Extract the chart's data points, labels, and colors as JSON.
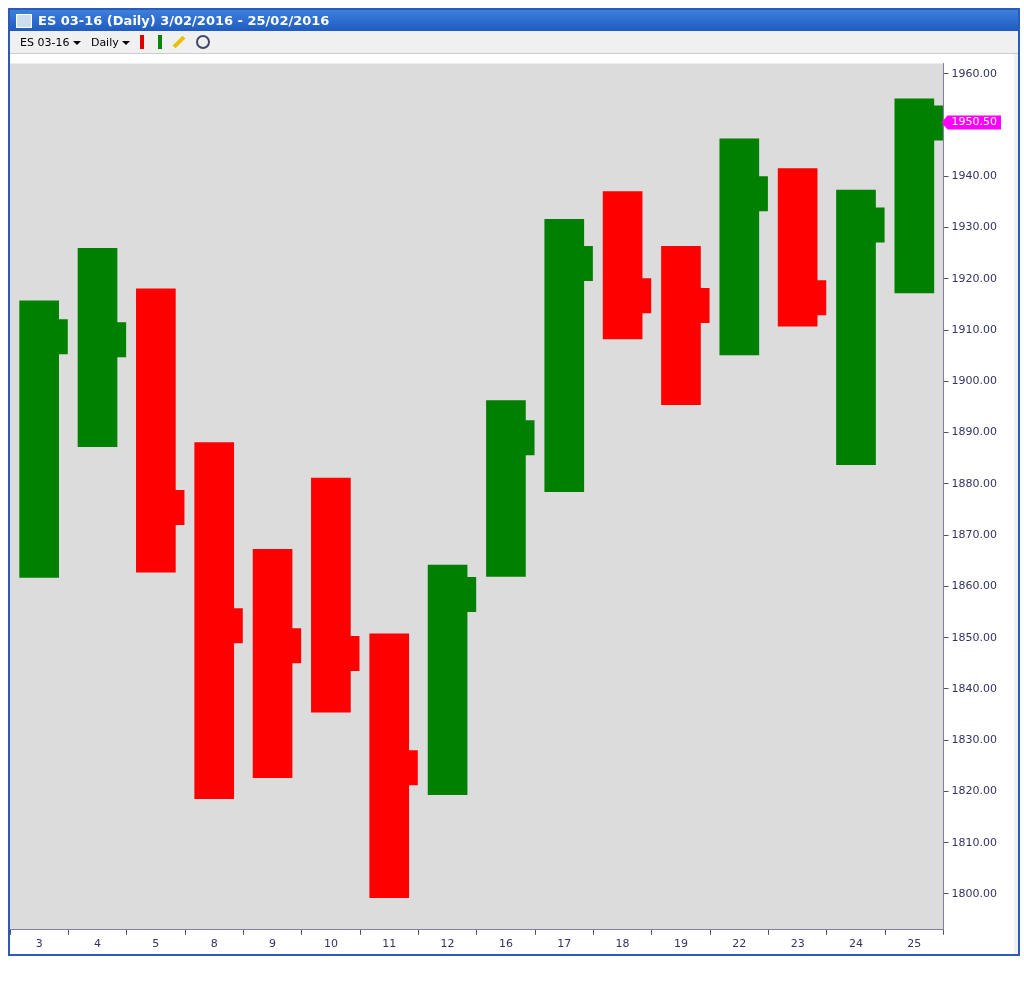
{
  "chart_data": {
    "type": "bar",
    "title": "ES 03-16 (Daily)  3/02/2016 - 25/02/2016",
    "categories": [
      "3",
      "4",
      "5",
      "8",
      "9",
      "10",
      "11",
      "12",
      "16",
      "17",
      "18",
      "19",
      "22",
      "23",
      "24",
      "25"
    ],
    "series": [
      {
        "base": [
          1861.7,
          1887.2,
          1862.7,
          1818.5,
          1822.6,
          1835.4,
          1799.2,
          1819.3,
          1861.9,
          1878.4,
          1908.2,
          1895.4,
          1905.1,
          1910.7,
          1883.7,
          1917.2
        ],
        "values": [
          54.1,
          38.8,
          55.4,
          69.6,
          44.7,
          45.8,
          51.6,
          44.9,
          34.4,
          53.3,
          28.9,
          31.0,
          42.3,
          30.9,
          53.7,
          38.0
        ],
        "colors": [
          "#008000",
          "#008000",
          "#ff0000",
          "#ff0000",
          "#ff0000",
          "#ff0000",
          "#ff0000",
          "#008000",
          "#008000",
          "#008000",
          "#ff0000",
          "#ff0000",
          "#008000",
          "#ff0000",
          "#008000",
          "#008000"
        ]
      },
      {
        "type": "scatter",
        "marker": "square",
        "values": [
          1908.8,
          1908.2,
          1875.5,
          1852.4,
          1848.5,
          1847.0,
          1824.7,
          1858.5,
          1889.1,
          1923.1,
          1916.8,
          1914.9,
          1936.7,
          1916.4,
          1930.6,
          1950.5
        ],
        "colors": [
          "#008000",
          "#008000",
          "#ff0000",
          "#ff0000",
          "#ff0000",
          "#ff0000",
          "#ff0000",
          "#008000",
          "#008000",
          "#008000",
          "#ff0000",
          "#ff0000",
          "#008000",
          "#ff0000",
          "#008000",
          "#008000"
        ]
      }
    ],
    "ylim": [
      1793,
      1962
    ],
    "yticks": [
      {
        "value": 1800,
        "label": "1800.00"
      },
      {
        "value": 1810,
        "label": "1810.00"
      },
      {
        "value": 1820,
        "label": "1820.00"
      },
      {
        "value": 1830,
        "label": "1830.00"
      },
      {
        "value": 1840,
        "label": "1840.00"
      },
      {
        "value": 1850,
        "label": "1850.00"
      },
      {
        "value": 1860,
        "label": "1860.00"
      },
      {
        "value": 1870,
        "label": "1870.00"
      },
      {
        "value": 1880,
        "label": "1880.00"
      },
      {
        "value": 1890,
        "label": "1890.00"
      },
      {
        "value": 1900,
        "label": "1900.00"
      },
      {
        "value": 1910,
        "label": "1910.00"
      },
      {
        "value": 1920,
        "label": "1920.00"
      },
      {
        "value": 1930,
        "label": "1930.00"
      },
      {
        "value": 1940,
        "label": "1940.00"
      },
      {
        "value": 1950,
        "label": null
      },
      {
        "value": 1960,
        "label": "1960.00"
      }
    ],
    "grid": false,
    "legend": false,
    "annotations": [
      "1950.50",
      "ES 03-16",
      "Daily"
    ]
  }
}
